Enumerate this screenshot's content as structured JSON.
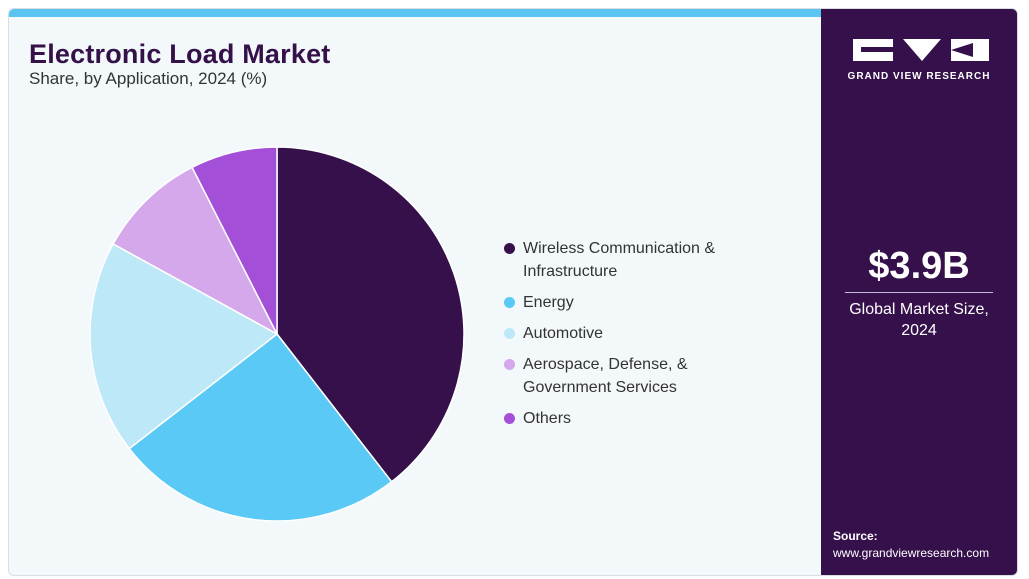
{
  "chart_data": {
    "type": "pie",
    "title": "Electronic Load Market",
    "subtitle": "Share, by Application, 2024 (%)",
    "categories": [
      "Wireless Communication & Infrastructure",
      "Energy",
      "Automotive",
      "Aerospace, Defense, & Government Services",
      "Others"
    ],
    "values": [
      39.5,
      25.0,
      18.5,
      9.5,
      7.5
    ],
    "colors": [
      "#35104a",
      "#5bc9f5",
      "#bde8f8",
      "#d4a8ea",
      "#a44fd8"
    ],
    "legend_position": "right"
  },
  "legend": {
    "items": [
      {
        "label_lines": [
          "Wireless Communication &",
          "Infrastructure"
        ],
        "color": "#35104a"
      },
      {
        "label_lines": [
          "Energy"
        ],
        "color": "#5bc9f5"
      },
      {
        "label_lines": [
          "Automotive"
        ],
        "color": "#bde8f8"
      },
      {
        "label_lines": [
          "Aerospace, Defense, &",
          "Government Services"
        ],
        "color": "#d4a8ea"
      },
      {
        "label_lines": [
          "Others"
        ],
        "color": "#a44fd8"
      }
    ]
  },
  "sidebar": {
    "brand": "GRAND VIEW RESEARCH",
    "market_size": "$3.9B",
    "market_label_lines": [
      "Global Market Size,",
      "2024"
    ],
    "source_label": "Source:",
    "source_url": "www.grandviewresearch.com"
  },
  "colors": {
    "accent_bar": "#5bc5f2",
    "sidebar_bg": "#35104a",
    "title": "#35114a"
  }
}
